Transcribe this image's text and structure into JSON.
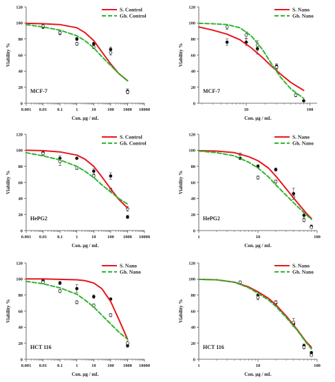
{
  "chart_data": [
    {
      "type": "line",
      "cell_label": "MCF-7",
      "xlabel": "Con. µg / mL",
      "ylabel": "Viability %",
      "x_scale": "log",
      "xlim": [
        0.001,
        10000
      ],
      "ylim": [
        0,
        120
      ],
      "x_ticks": [
        "0.001",
        "0.01",
        "0.1",
        "1",
        "10",
        "100",
        "1000",
        "10000"
      ],
      "y_ticks": [
        "0",
        "20",
        "40",
        "60",
        "80",
        "100",
        "120"
      ],
      "legend_position": "top-right",
      "series": [
        {
          "name": "S. Control",
          "color": "#e8141c",
          "dash": "solid",
          "x": [
            0.001,
            0.01,
            0.1,
            1,
            3,
            10,
            30,
            100,
            300,
            1000
          ],
          "y": [
            99.5,
            99,
            98,
            94,
            88,
            78,
            64,
            49,
            37,
            28
          ]
        },
        {
          "name": "Gh. Control",
          "color": "#2db52d",
          "dash": "dashed",
          "x": [
            0.001,
            0.01,
            0.1,
            1,
            3,
            10,
            30,
            100,
            300,
            1000
          ],
          "y": [
            98,
            95,
            91,
            84,
            78,
            69,
            58,
            47,
            37,
            28
          ]
        }
      ],
      "points": [
        {
          "symbol": "filled",
          "x": [
            0.01,
            0.1,
            1,
            10,
            100,
            1000
          ],
          "y": [
            95,
            88,
            80,
            74,
            67,
            15
          ],
          "err": [
            2,
            3,
            2,
            2,
            3,
            3
          ]
        },
        {
          "symbol": "open",
          "x": [
            0.01,
            0.1,
            1,
            10,
            100,
            1000
          ],
          "y": [
            96,
            88,
            74,
            70,
            63,
            14
          ],
          "err": [
            2,
            2,
            2,
            2,
            3,
            2
          ]
        }
      ]
    },
    {
      "type": "line",
      "cell_label": "MCF-7",
      "xlabel": "Con. µg / mL",
      "ylabel": "Viability %",
      "x_scale": "log",
      "xlim": [
        1.8,
        130
      ],
      "ylim": [
        0,
        120
      ],
      "x_ticks": [
        "10",
        "100"
      ],
      "y_ticks": [
        "0",
        "20",
        "40",
        "60",
        "80",
        "100",
        "120"
      ],
      "legend_position": "top-right",
      "series": [
        {
          "name": "S. Nano",
          "color": "#e8141c",
          "dash": "solid",
          "x": [
            1.8,
            3,
            5,
            8,
            12,
            18,
            25,
            35,
            50,
            80
          ],
          "y": [
            95,
            91,
            86,
            79,
            69,
            57,
            46,
            36,
            26,
            16
          ]
        },
        {
          "name": "Gh. Nano",
          "color": "#2db52d",
          "dash": "dashed",
          "x": [
            1.8,
            3,
            5,
            8,
            12,
            18,
            25,
            35,
            50,
            80
          ],
          "y": [
            99.5,
            99,
            98,
            94,
            84,
            67,
            49,
            32,
            18,
            6
          ]
        }
      ],
      "points": [
        {
          "symbol": "filled",
          "x": [
            5,
            10,
            15,
            30,
            80
          ],
          "y": [
            76,
            76,
            68,
            46,
            3
          ],
          "err": [
            4,
            4,
            7,
            3,
            1
          ]
        },
        {
          "symbol": "open",
          "x": [
            5,
            10,
            15,
            30,
            60
          ],
          "y": [
            95,
            85,
            72,
            45,
            10
          ],
          "err": [
            3,
            4,
            6,
            3,
            2
          ]
        }
      ]
    },
    {
      "type": "line",
      "cell_label": "HePG2",
      "xlabel": "Con. µg / mL",
      "ylabel": "Viability %",
      "x_scale": "log",
      "xlim": [
        0.001,
        10000
      ],
      "ylim": [
        0,
        120
      ],
      "x_ticks": [
        "0.001",
        "0.01",
        "0.1",
        "1",
        "10",
        "100",
        "1000",
        "10000"
      ],
      "y_ticks": [
        "0",
        "20",
        "40",
        "60",
        "80",
        "100",
        "120"
      ],
      "legend_position": "top-right",
      "series": [
        {
          "name": "S. Control",
          "color": "#e8141c",
          "dash": "solid",
          "x": [
            0.001,
            0.01,
            0.1,
            1,
            3,
            10,
            30,
            100,
            300,
            1000
          ],
          "y": [
            100,
            99.5,
            98,
            94,
            89,
            80,
            67,
            52,
            39,
            28
          ]
        },
        {
          "name": "Gh. Control",
          "color": "#2db52d",
          "dash": "dashed",
          "x": [
            0.001,
            0.01,
            0.1,
            1,
            3,
            10,
            30,
            100,
            300,
            1000
          ],
          "y": [
            97,
            93,
            88,
            80,
            74,
            66,
            57,
            48,
            40,
            33
          ]
        }
      ],
      "points": [
        {
          "symbol": "filled",
          "x": [
            0.01,
            0.1,
            1,
            10,
            100,
            1000
          ],
          "y": [
            97,
            90,
            90,
            74,
            68,
            17
          ],
          "err": [
            3,
            3,
            1,
            3,
            4,
            2
          ]
        },
        {
          "symbol": "open",
          "x": [
            0.01,
            0.1,
            1,
            10,
            100,
            1000
          ],
          "y": [
            96,
            86,
            78,
            68,
            51,
            27
          ],
          "err": [
            2,
            5,
            2,
            2,
            2,
            3
          ]
        }
      ]
    },
    {
      "type": "line",
      "cell_label": "HePG2",
      "xlabel": "Con. µg / mL",
      "ylabel": "Viability %",
      "x_scale": "log",
      "xlim": [
        1,
        100
      ],
      "ylim": [
        0,
        120
      ],
      "x_ticks": [
        "1",
        "10",
        "100"
      ],
      "y_ticks": [
        "0",
        "20",
        "40",
        "60",
        "80",
        "100",
        "120"
      ],
      "legend_position": "top-right",
      "series": [
        {
          "name": "S. Nano",
          "color": "#e8141c",
          "dash": "solid",
          "x": [
            1,
            2,
            4,
            7,
            10,
            15,
            20,
            30,
            45,
            65,
            80
          ],
          "y": [
            99.5,
            99,
            97,
            92,
            87,
            78,
            68,
            52,
            36,
            22,
            15
          ]
        },
        {
          "name": "Gh. Nano",
          "color": "#2db52d",
          "dash": "dashed",
          "x": [
            1,
            2,
            4,
            7,
            10,
            15,
            20,
            30,
            45,
            65,
            80
          ],
          "y": [
            99,
            97,
            93,
            85,
            78,
            67,
            57,
            44,
            31,
            20,
            14
          ]
        }
      ],
      "points": [
        {
          "symbol": "filled",
          "x": [
            5,
            10,
            20,
            40,
            60,
            80
          ],
          "y": [
            90,
            80,
            76,
            46,
            19,
            5
          ],
          "err": [
            1,
            2,
            2,
            7,
            3,
            2
          ]
        },
        {
          "symbol": "open",
          "x": [
            5,
            10,
            20,
            40,
            60,
            80
          ],
          "y": [
            95,
            66,
            61,
            42,
            13,
            4
          ],
          "err": [
            1,
            2,
            2,
            3,
            2,
            1
          ]
        }
      ]
    },
    {
      "type": "line",
      "cell_label": "HCT 116",
      "xlabel": "Con. µg / mL",
      "ylabel": "Viability %",
      "x_scale": "log",
      "xlim": [
        0.001,
        10000
      ],
      "ylim": [
        0,
        120
      ],
      "x_ticks": [
        "0.001",
        "0.01",
        "0.1",
        "1",
        "10",
        "100",
        "1000",
        "10000"
      ],
      "y_ticks": [
        "0",
        "20",
        "40",
        "60",
        "80",
        "100",
        "120"
      ],
      "legend_position": "top-right",
      "series": [
        {
          "name": "S. Nano",
          "color": "#e8141c",
          "dash": "solid",
          "x": [
            0.001,
            0.01,
            0.1,
            1,
            3,
            10,
            30,
            100,
            300,
            1000
          ],
          "y": [
            100,
            100,
            99.5,
            99,
            98,
            95,
            88,
            72,
            50,
            25
          ]
        },
        {
          "name": "Gh. Nano",
          "color": "#2db52d",
          "dash": "dashed",
          "x": [
            0.001,
            0.01,
            0.1,
            1,
            3,
            10,
            30,
            100,
            300,
            1000
          ],
          "y": [
            97,
            94,
            89,
            81,
            74,
            65,
            55,
            44,
            34,
            25
          ]
        }
      ],
      "points": [
        {
          "symbol": "filled",
          "x": [
            0.01,
            0.1,
            1,
            10,
            100,
            1000
          ],
          "y": [
            98,
            95,
            88,
            78,
            75,
            17
          ],
          "err": [
            2,
            2,
            5,
            2,
            1,
            2
          ]
        },
        {
          "symbol": "open",
          "x": [
            0.01,
            0.1,
            1,
            10,
            100,
            1000
          ],
          "y": [
            96,
            85,
            71,
            67,
            55,
            20
          ],
          "err": [
            2,
            2,
            2,
            2,
            2,
            3
          ]
        }
      ]
    },
    {
      "type": "line",
      "cell_label": "HCT 116",
      "xlabel": "Con. µg / mL",
      "ylabel": "Viability %",
      "x_scale": "log",
      "xlim": [
        1,
        100
      ],
      "ylim": [
        0,
        120
      ],
      "x_ticks": [
        "1",
        "10",
        "100"
      ],
      "y_ticks": [
        "0",
        "20",
        "40",
        "60",
        "80",
        "100",
        "120"
      ],
      "legend_position": "top-right",
      "series": [
        {
          "name": "S. Nano",
          "color": "#e8141c",
          "dash": "solid",
          "x": [
            1,
            2,
            4,
            7,
            10,
            15,
            20,
            30,
            45,
            65,
            80
          ],
          "y": [
            99.5,
            99,
            96,
            90,
            84,
            76,
            68,
            54,
            38,
            22,
            15
          ]
        },
        {
          "name": "Gh. Nano",
          "color": "#2db52d",
          "dash": "dashed",
          "x": [
            1,
            2,
            4,
            7,
            10,
            15,
            20,
            30,
            45,
            65,
            80
          ],
          "y": [
            99.5,
            99,
            96,
            89,
            82,
            74,
            66,
            52,
            37,
            21,
            13
          ]
        }
      ],
      "points": [
        {
          "symbol": "filled",
          "x": [
            5,
            10,
            20,
            40,
            60,
            80
          ],
          "y": [
            96,
            80,
            70,
            44,
            17,
            8
          ],
          "err": [
            1,
            4,
            3,
            3,
            2,
            2
          ]
        },
        {
          "symbol": "open",
          "x": [
            5,
            10,
            20,
            40,
            60,
            80
          ],
          "y": [
            96,
            77,
            71,
            46,
            15,
            5
          ],
          "err": [
            1,
            3,
            2,
            5,
            2,
            1
          ]
        }
      ]
    }
  ]
}
